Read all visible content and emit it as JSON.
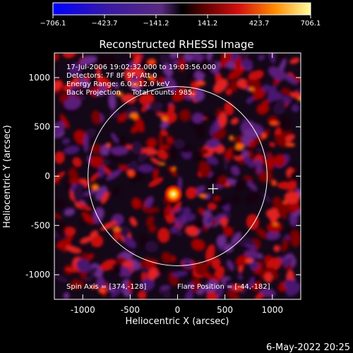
{
  "chart_data": {
    "type": "heatmap",
    "title": "Reconstructed RHESSI Image",
    "xlabel": "Heliocentric X (arcsec)",
    "ylabel": "Heliocentric Y (arcsec)",
    "xlim": [
      -1300,
      1300
    ],
    "ylim": [
      -1250,
      1250
    ],
    "x_ticks": [
      -1000,
      -500,
      0,
      500,
      1000
    ],
    "y_ticks": [
      -1000,
      -500,
      0,
      500,
      1000
    ],
    "colorbar": {
      "min": -706.1,
      "max": 706.1,
      "tick_values": [
        -706.1,
        -423.7,
        -141.2,
        141.2,
        423.7,
        706.1
      ],
      "tick_labels": [
        "−706.1",
        "−423.7",
        "−141.2",
        "141.2",
        "423.7",
        "706.1"
      ]
    },
    "annotations": [
      "17-Jul-2006 19:02:32.000 to 19:03:56.000",
      "Detectors: 7F 8F 9F, Att 0",
      "Energy Range: 6.0 - 12.0 keV",
      "Back Projection     Total counts: 985."
    ],
    "spin_axis_label": "Spin Axis = [374,-128]",
    "flare_position_label": "Flare Position = [-44,-182]",
    "spin_axis": [
      374,
      -128
    ],
    "flare_position": [
      -44,
      -182
    ],
    "solar_disk_radius": 945,
    "grid": false
  },
  "footer": {
    "date": "6-May-2022 20:25"
  }
}
